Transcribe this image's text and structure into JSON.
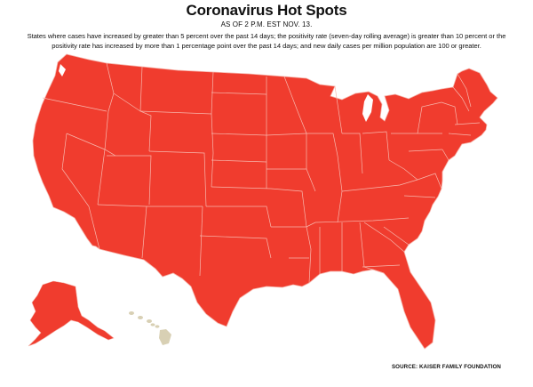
{
  "title": "Coronavirus Hot Spots",
  "as_of": "AS OF 2 P.M. EST NOV. 13.",
  "description": "States where cases have increased by greater than 5 percent over the past 14 days; the positivity rate (seven-day rolling average) is greater than 10 percent or the positivity rate has increased by more than 1 percentage point over the past 14 days; and new daily cases per million population are 100 or greater.",
  "source": "SOURCE: KAISER FAMILY FOUNDATION",
  "colors": {
    "hot_spot": "#f03c2e",
    "not_hot_spot": "#d8d0b4",
    "border": "#f5b3aa"
  },
  "map": {
    "contiguous_us_status": "hot spot",
    "alaska_status": "hot spot",
    "hawaii_status": "not hot spot"
  }
}
